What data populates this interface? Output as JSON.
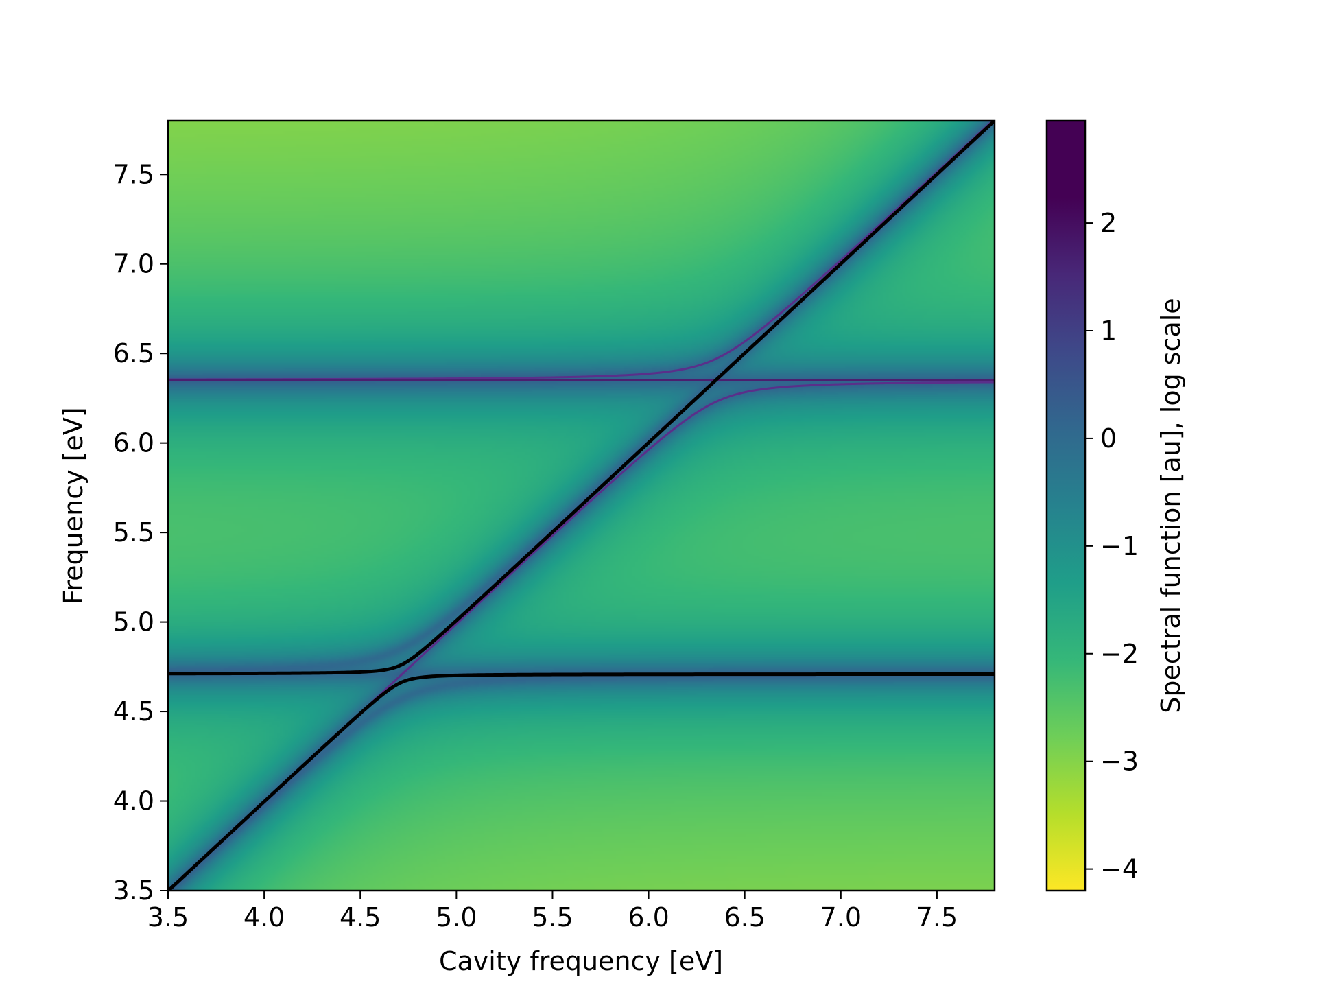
{
  "chart_data": {
    "type": "heatmap",
    "title": "",
    "xlabel": "Cavity frequency [eV]",
    "ylabel": "Frequency [eV]",
    "xlim": [
      3.5,
      7.8
    ],
    "ylim": [
      3.5,
      7.8
    ],
    "x_ticks": [
      "3.5",
      "4.0",
      "4.5",
      "5.0",
      "5.5",
      "6.0",
      "6.5",
      "7.0",
      "7.5"
    ],
    "y_ticks": [
      "3.5",
      "4.0",
      "4.5",
      "5.0",
      "5.5",
      "6.0",
      "6.5",
      "7.0",
      "7.5"
    ],
    "x_tick_values": [
      3.5,
      4.0,
      4.5,
      5.0,
      5.5,
      6.0,
      6.5,
      7.0,
      7.5
    ],
    "y_tick_values": [
      3.5,
      4.0,
      4.5,
      5.0,
      5.5,
      6.0,
      6.5,
      7.0,
      7.5
    ],
    "colormap": "viridis_r",
    "colorbar": {
      "label": "Spectral function [au], log scale",
      "range": [
        -4.2,
        2.95
      ],
      "ticks": [
        "2",
        "1",
        "0",
        "−1",
        "−2",
        "−3",
        "−4"
      ],
      "tick_values": [
        2,
        1,
        0,
        -1,
        -2,
        -3,
        -4
      ]
    },
    "heatmap_features": {
      "excitation_energies_eV": [
        4.71,
        6.35
      ],
      "coupling_strength_eV": [
        0.14,
        0.12
      ],
      "black_curves": "lower polariton branch and upper polariton branch around the 4.71 eV excitation",
      "purple_curves": "polariton branches around the 6.35 eV excitation"
    },
    "grid": false,
    "line_color": "#000000"
  }
}
